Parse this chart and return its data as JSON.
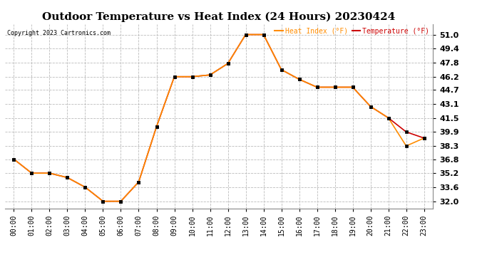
{
  "title": "Outdoor Temperature vs Heat Index (24 Hours) 20230424",
  "copyright": "Copyright 2023 Cartronics.com",
  "legend_heat": "Heat Index (°F)",
  "legend_temp": "Temperature (°F)",
  "hours": [
    "00:00",
    "01:00",
    "02:00",
    "03:00",
    "04:00",
    "05:00",
    "06:00",
    "07:00",
    "08:00",
    "09:00",
    "10:00",
    "11:00",
    "12:00",
    "13:00",
    "14:00",
    "15:00",
    "16:00",
    "17:00",
    "18:00",
    "19:00",
    "20:00",
    "21:00",
    "22:00",
    "23:00"
  ],
  "temperature": [
    36.8,
    35.2,
    35.2,
    34.7,
    33.6,
    32.0,
    32.0,
    34.2,
    40.5,
    46.2,
    46.2,
    46.4,
    47.7,
    51.0,
    51.0,
    47.0,
    45.9,
    45.0,
    45.0,
    45.0,
    42.8,
    41.5,
    39.9,
    39.2
  ],
  "heat_index": [
    36.8,
    35.2,
    35.2,
    34.7,
    33.6,
    32.0,
    32.0,
    34.2,
    40.5,
    46.2,
    46.2,
    46.4,
    47.7,
    51.0,
    51.0,
    47.0,
    45.9,
    45.0,
    45.0,
    45.0,
    42.8,
    41.5,
    38.3,
    39.2
  ],
  "temp_color": "#cc0000",
  "heat_color": "#ff8c00",
  "marker_color": "#000000",
  "ytick_labels": [
    "32.0",
    "33.6",
    "35.2",
    "36.8",
    "38.3",
    "39.9",
    "41.5",
    "43.1",
    "44.7",
    "46.2",
    "47.8",
    "49.4",
    "51.0"
  ],
  "ytick_values": [
    32.0,
    33.6,
    35.2,
    36.8,
    38.3,
    39.9,
    41.5,
    43.1,
    44.7,
    46.2,
    47.8,
    49.4,
    51.0
  ],
  "ylim": [
    31.2,
    52.2
  ],
  "background_color": "#ffffff",
  "grid_color": "#bbbbbb",
  "title_fontsize": 11,
  "label_fontsize": 7,
  "tick_fontsize": 8
}
